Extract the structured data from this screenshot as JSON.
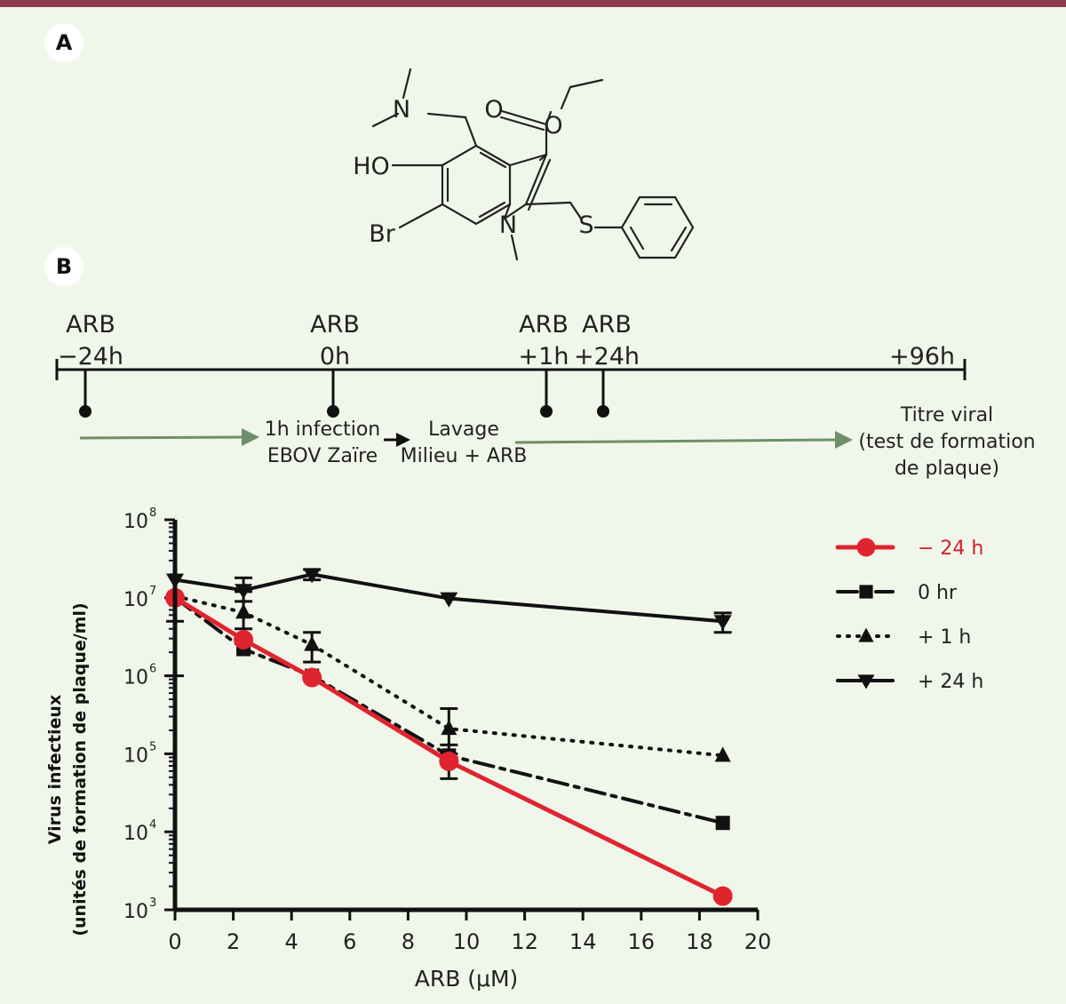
{
  "panels": {
    "a": "A",
    "b": "B"
  },
  "molecule": {
    "labels": {
      "n_dimethyl": "N",
      "o_carbonyl": "O",
      "o_ester": "O",
      "ho": "HO",
      "br": "Br",
      "n_ring": "N",
      "s": "S"
    }
  },
  "timeline": {
    "markers": [
      {
        "label1": "ARB",
        "label2": "−24h"
      },
      {
        "label1": "ARB",
        "label2": "0h"
      },
      {
        "label1": "ARB",
        "label2": "+1h"
      },
      {
        "label1": "ARB",
        "label2": "+24h"
      }
    ],
    "end_label": "+96h",
    "step1": [
      "1h infection",
      "EBOV Zaïre"
    ],
    "step2": [
      "Lavage",
      "Milieu + ARB"
    ],
    "step3": [
      "Titre viral",
      "(test de formation",
      "de plaque)"
    ],
    "colors": {
      "line": "#111111",
      "arrow": "#6e8f6a"
    }
  },
  "chart_data": {
    "type": "line",
    "xlabel": "ARB (μM)",
    "ylabel": [
      "Virus infectieux",
      "(unités de formation de plaque/ml)"
    ],
    "xlim": [
      0,
      20
    ],
    "ylim": [
      1000,
      100000000
    ],
    "yscale": "log",
    "xticks": [
      "0",
      "2",
      "4",
      "6",
      "8",
      "10",
      "12",
      "14",
      "16",
      "18",
      "20"
    ],
    "yticks": [
      {
        "base": "10",
        "exp": "3"
      },
      {
        "base": "10",
        "exp": "4"
      },
      {
        "base": "10",
        "exp": "5"
      },
      {
        "base": "10",
        "exp": "6"
      },
      {
        "base": "10",
        "exp": "7"
      },
      {
        "base": "10",
        "exp": "8"
      }
    ],
    "legend_position": "right",
    "series": [
      {
        "name": "− 24 h",
        "color": "#e0242f",
        "marker": "circle",
        "style": "solid",
        "x": [
          0,
          2.35,
          4.7,
          9.4,
          18.8
        ],
        "y": [
          10000000,
          2900000,
          950000,
          80000,
          1500
        ],
        "err": [
          [
            0,
            0
          ],
          [
            0,
            0
          ],
          [
            0,
            0
          ],
          [
            48000,
            130000
          ],
          [
            0,
            0
          ]
        ]
      },
      {
        "name": "0 hr",
        "color": "#111111",
        "marker": "square",
        "style": "dashdot",
        "x": [
          0,
          2.35,
          4.7,
          9.4,
          18.8
        ],
        "y": [
          10000000,
          2200000,
          1000000,
          95000,
          13000
        ],
        "err": [
          [
            1000000,
            5000000
          ],
          [
            0,
            0
          ],
          [
            0,
            0
          ],
          [
            0,
            0
          ],
          [
            0,
            0
          ]
        ]
      },
      {
        "name": "+ 1 h",
        "color": "#111111",
        "marker": "triangle-up",
        "style": "dotted",
        "x": [
          0,
          2.35,
          4.7,
          9.4,
          18.8
        ],
        "y": [
          10500000,
          6500000,
          2500000,
          210000,
          95000
        ],
        "err": [
          [
            0,
            0
          ],
          [
            4000000,
            12000000
          ],
          [
            1500000,
            3600000
          ],
          [
            100000,
            380000
          ],
          [
            0,
            0
          ]
        ]
      },
      {
        "name": "+ 24 h",
        "color": "#111111",
        "marker": "triangle-down",
        "style": "solid",
        "x": [
          0,
          2.35,
          4.7,
          9.4,
          18.8
        ],
        "y": [
          17000000,
          12500000,
          20000000,
          9800000,
          5000000
        ],
        "err": [
          [
            0,
            0
          ],
          [
            9000000,
            18000000
          ],
          [
            17000000,
            23000000
          ],
          [
            0,
            0
          ],
          [
            3600000,
            6400000
          ]
        ]
      }
    ]
  }
}
